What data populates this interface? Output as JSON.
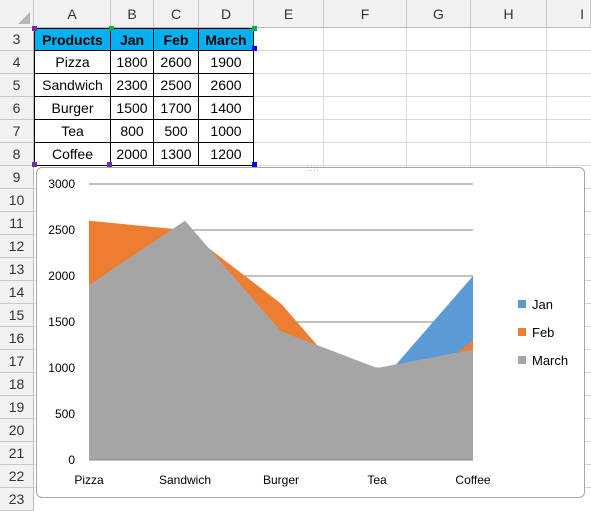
{
  "columns": [
    "A",
    "B",
    "C",
    "D",
    "E",
    "F",
    "G",
    "H",
    "I"
  ],
  "rows": [
    "3",
    "4",
    "5",
    "6",
    "7",
    "8",
    "9",
    "10",
    "11",
    "12",
    "13",
    "14",
    "15",
    "16",
    "17",
    "18",
    "19",
    "20",
    "21",
    "22",
    "23"
  ],
  "table": {
    "headers": [
      "Products",
      "Jan",
      "Feb",
      "March"
    ],
    "rows": [
      [
        "Pizza",
        "1800",
        "2600",
        "1900"
      ],
      [
        "Sandwich",
        "2300",
        "2500",
        "2600"
      ],
      [
        "Burger",
        "1500",
        "1700",
        "1400"
      ],
      [
        "Tea",
        "800",
        "500",
        "1000"
      ],
      [
        "Coffee",
        "2000",
        "1300",
        "1200"
      ]
    ]
  },
  "chart_data": {
    "type": "area",
    "categories": [
      "Pizza",
      "Sandwich",
      "Burger",
      "Tea",
      "Coffee"
    ],
    "series": [
      {
        "name": "Jan",
        "values": [
          1800,
          2300,
          1500,
          800,
          2000
        ],
        "color": "#5b9bd5"
      },
      {
        "name": "Feb",
        "values": [
          2600,
          2500,
          1700,
          500,
          1300
        ],
        "color": "#ed7d31"
      },
      {
        "name": "March",
        "values": [
          1900,
          2600,
          1400,
          1000,
          1200
        ],
        "color": "#a5a5a5"
      }
    ],
    "y_ticks": [
      "0",
      "500",
      "1000",
      "1500",
      "2000",
      "2500",
      "3000"
    ],
    "ylim": [
      0,
      3000
    ],
    "grid": true,
    "legend_position": "right"
  }
}
